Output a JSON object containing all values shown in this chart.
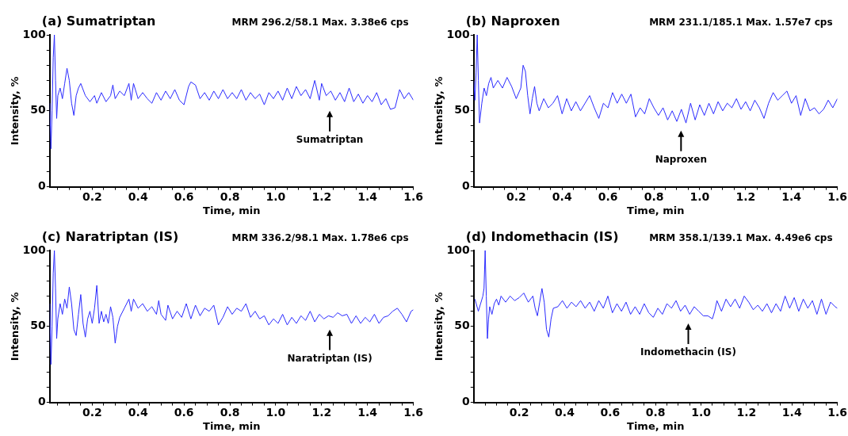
{
  "chart_data": [
    {
      "type": "line",
      "title": "(a) Sumatriptan",
      "subtitle": "MRM 296.2/58.1 Max. 3.38e6 cps",
      "xlabel": "Time, min",
      "ylabel": "Intensity, %",
      "xlim": [
        0.015,
        1.6
      ],
      "ylim": [
        0,
        100
      ],
      "xticks": [
        {
          "value": 0.05,
          "label": null
        },
        {
          "value": 0.1,
          "label": null
        },
        {
          "value": 0.15,
          "label": null
        },
        0.2,
        {
          "value": 0.25,
          "label": null
        },
        {
          "value": 0.3,
          "label": null
        },
        {
          "value": 0.35,
          "label": null
        },
        0.4,
        {
          "value": 0.45,
          "label": null
        },
        {
          "value": 0.5,
          "label": null
        },
        {
          "value": 0.55,
          "label": null
        },
        0.6,
        {
          "value": 0.65,
          "label": null
        },
        {
          "value": 0.7,
          "label": null
        },
        {
          "value": 0.75,
          "label": null
        },
        0.8,
        {
          "value": 0.85,
          "label": null
        },
        {
          "value": 0.9,
          "label": null
        },
        {
          "value": 0.95,
          "label": null
        },
        {
          "value": 1,
          "label": "1.0"
        },
        {
          "value": 1.05,
          "label": null
        },
        {
          "value": 1.1,
          "label": null
        },
        {
          "value": 1.15,
          "label": null
        },
        1.2,
        {
          "value": 1.25,
          "label": null
        },
        {
          "value": 1.3,
          "label": null
        },
        {
          "value": 1.35,
          "label": null
        },
        1.4,
        {
          "value": 1.45,
          "label": null
        },
        {
          "value": 1.5,
          "label": null
        },
        {
          "value": 1.55,
          "label": null
        },
        1.6
      ],
      "yticks": [
        0,
        {
          "value": 10,
          "label": null
        },
        {
          "value": 20,
          "label": null
        },
        {
          "value": 30,
          "label": null
        },
        {
          "value": 40,
          "label": null
        },
        50,
        {
          "value": 60,
          "label": null
        },
        {
          "value": 70,
          "label": null
        },
        {
          "value": 80,
          "label": null
        },
        {
          "value": 90,
          "label": null
        },
        100
      ],
      "annotations": [
        "Sumatriptan"
      ],
      "x": [
        0.015,
        0.02,
        0.025,
        0.03,
        0.035,
        0.04,
        0.045,
        0.05,
        0.06,
        0.07,
        0.08,
        0.09,
        0.1,
        0.11,
        0.12,
        0.13,
        0.14,
        0.15,
        0.17,
        0.19,
        0.21,
        0.22,
        0.24,
        0.26,
        0.28,
        0.29,
        0.3,
        0.32,
        0.34,
        0.36,
        0.37,
        0.38,
        0.4,
        0.42,
        0.44,
        0.46,
        0.48,
        0.5,
        0.52,
        0.54,
        0.56,
        0.58,
        0.6,
        0.62,
        0.63,
        0.65,
        0.67,
        0.69,
        0.71,
        0.73,
        0.75,
        0.77,
        0.79,
        0.81,
        0.83,
        0.85,
        0.87,
        0.89,
        0.91,
        0.93,
        0.95,
        0.97,
        0.99,
        1.01,
        1.03,
        1.05,
        1.07,
        1.09,
        1.11,
        1.13,
        1.15,
        1.17,
        1.19,
        1.2,
        1.22,
        1.24,
        1.26,
        1.28,
        1.3,
        1.32,
        1.34,
        1.36,
        1.38,
        1.4,
        1.42,
        1.44,
        1.46,
        1.48,
        1.5,
        1.52,
        1.54,
        1.56,
        1.58,
        1.6
      ],
      "series": [
        {
          "color": "#2a2aff",
          "values": [
            55,
            25,
            50,
            85,
            100,
            70,
            45,
            60,
            65,
            58,
            68,
            78,
            70,
            55,
            47,
            60,
            65,
            68,
            60,
            56,
            60,
            55,
            62,
            56,
            60,
            67,
            58,
            63,
            60,
            68,
            57,
            68,
            58,
            62,
            58,
            55,
            62,
            57,
            63,
            58,
            64,
            57,
            54,
            66,
            69,
            67,
            58,
            62,
            57,
            63,
            58,
            64,
            58,
            62,
            58,
            64,
            57,
            62,
            58,
            61,
            54,
            62,
            58,
            63,
            57,
            65,
            58,
            66,
            60,
            64,
            58,
            70,
            57,
            68,
            60,
            63,
            57,
            62,
            56,
            65,
            56,
            61,
            55,
            60,
            56,
            62,
            54,
            58,
            51,
            52,
            64,
            58,
            62,
            57
          ]
        }
      ]
    },
    {
      "type": "line",
      "title": "(b) Naproxen",
      "subtitle": "MRM 231.1/185.1 Max. 1.57e7 cps",
      "xlabel": "Time, min",
      "ylabel": "Intensity, %",
      "xlim": [
        0.015,
        1.6
      ],
      "ylim": [
        0,
        100
      ],
      "xticks": [
        {
          "value": 0.05,
          "label": null
        },
        {
          "value": 0.1,
          "label": null
        },
        {
          "value": 0.15,
          "label": null
        },
        0.2,
        {
          "value": 0.25,
          "label": null
        },
        {
          "value": 0.3,
          "label": null
        },
        {
          "value": 0.35,
          "label": null
        },
        0.4,
        {
          "value": 0.45,
          "label": null
        },
        {
          "value": 0.5,
          "label": null
        },
        {
          "value": 0.55,
          "label": null
        },
        0.6,
        {
          "value": 0.65,
          "label": null
        },
        {
          "value": 0.7,
          "label": null
        },
        {
          "value": 0.75,
          "label": null
        },
        0.8,
        {
          "value": 0.85,
          "label": null
        },
        {
          "value": 0.9,
          "label": null
        },
        {
          "value": 0.95,
          "label": null
        },
        {
          "value": 1,
          "label": "1.0"
        },
        {
          "value": 1.05,
          "label": null
        },
        {
          "value": 1.1,
          "label": null
        },
        {
          "value": 1.15,
          "label": null
        },
        1.2,
        {
          "value": 1.25,
          "label": null
        },
        {
          "value": 1.3,
          "label": null
        },
        {
          "value": 1.35,
          "label": null
        },
        1.4,
        {
          "value": 1.45,
          "label": null
        },
        {
          "value": 1.5,
          "label": null
        },
        {
          "value": 1.55,
          "label": null
        },
        1.6
      ],
      "yticks": [
        0,
        {
          "value": 10,
          "label": null
        },
        {
          "value": 20,
          "label": null
        },
        {
          "value": 30,
          "label": null
        },
        {
          "value": 40,
          "label": null
        },
        50,
        {
          "value": 60,
          "label": null
        },
        {
          "value": 70,
          "label": null
        },
        {
          "value": 80,
          "label": null
        },
        {
          "value": 90,
          "label": null
        },
        100
      ],
      "annotations": [
        "Naproxen"
      ],
      "x": [
        0.015,
        0.02,
        0.025,
        0.03,
        0.035,
        0.04,
        0.05,
        0.06,
        0.07,
        0.08,
        0.09,
        0.1,
        0.12,
        0.14,
        0.16,
        0.18,
        0.2,
        0.22,
        0.23,
        0.24,
        0.25,
        0.26,
        0.27,
        0.28,
        0.29,
        0.3,
        0.32,
        0.34,
        0.36,
        0.38,
        0.4,
        0.42,
        0.44,
        0.46,
        0.48,
        0.5,
        0.52,
        0.54,
        0.56,
        0.58,
        0.6,
        0.62,
        0.64,
        0.66,
        0.68,
        0.7,
        0.72,
        0.74,
        0.76,
        0.78,
        0.8,
        0.82,
        0.84,
        0.86,
        0.88,
        0.9,
        0.92,
        0.94,
        0.96,
        0.98,
        1,
        1.02,
        1.04,
        1.06,
        1.08,
        1.1,
        1.12,
        1.14,
        1.16,
        1.18,
        1.2,
        1.22,
        1.24,
        1.26,
        1.28,
        1.3,
        1.32,
        1.34,
        1.36,
        1.38,
        1.4,
        1.42,
        1.44,
        1.46,
        1.48,
        1.5,
        1.52,
        1.54,
        1.56,
        1.58,
        1.6
      ],
      "series": [
        {
          "color": "#2a2aff",
          "values": [
            70,
            57,
            75,
            100,
            70,
            42,
            55,
            65,
            60,
            68,
            72,
            65,
            70,
            65,
            72,
            66,
            58,
            65,
            80,
            76,
            60,
            48,
            58,
            66,
            55,
            50,
            58,
            52,
            55,
            60,
            48,
            58,
            50,
            56,
            50,
            55,
            60,
            52,
            45,
            55,
            52,
            62,
            55,
            61,
            55,
            61,
            46,
            52,
            48,
            58,
            52,
            47,
            52,
            44,
            50,
            43,
            51,
            42,
            55,
            44,
            54,
            47,
            55,
            48,
            56,
            50,
            55,
            52,
            58,
            51,
            56,
            50,
            57,
            52,
            45,
            55,
            62,
            57,
            60,
            63,
            55,
            60,
            47,
            58,
            50,
            52,
            48,
            51,
            57,
            52,
            58
          ]
        }
      ]
    },
    {
      "type": "line",
      "title": "(c) Naratriptan (IS)",
      "subtitle": "MRM 336.2/98.1 Max. 1.78e6 cps",
      "xlabel": "Time, min",
      "ylabel": "Intensity, %",
      "xlim": [
        0.015,
        1.6
      ],
      "ylim": [
        0,
        100
      ],
      "xticks": [
        {
          "value": 0.05,
          "label": null
        },
        {
          "value": 0.1,
          "label": null
        },
        {
          "value": 0.15,
          "label": null
        },
        0.2,
        {
          "value": 0.25,
          "label": null
        },
        {
          "value": 0.3,
          "label": null
        },
        {
          "value": 0.35,
          "label": null
        },
        0.4,
        {
          "value": 0.45,
          "label": null
        },
        {
          "value": 0.5,
          "label": null
        },
        {
          "value": 0.55,
          "label": null
        },
        0.6,
        {
          "value": 0.65,
          "label": null
        },
        {
          "value": 0.7,
          "label": null
        },
        {
          "value": 0.75,
          "label": null
        },
        0.8,
        {
          "value": 0.85,
          "label": null
        },
        {
          "value": 0.9,
          "label": null
        },
        {
          "value": 0.95,
          "label": null
        },
        {
          "value": 1,
          "label": "1.0"
        },
        {
          "value": 1.05,
          "label": null
        },
        {
          "value": 1.1,
          "label": null
        },
        {
          "value": 1.15,
          "label": null
        },
        1.2,
        {
          "value": 1.25,
          "label": null
        },
        {
          "value": 1.3,
          "label": null
        },
        {
          "value": 1.35,
          "label": null
        },
        1.4,
        {
          "value": 1.45,
          "label": null
        },
        {
          "value": 1.5,
          "label": null
        },
        {
          "value": 1.55,
          "label": null
        },
        1.6
      ],
      "yticks": [
        0,
        {
          "value": 10,
          "label": null
        },
        {
          "value": 20,
          "label": null
        },
        {
          "value": 30,
          "label": null
        },
        {
          "value": 40,
          "label": null
        },
        50,
        {
          "value": 60,
          "label": null
        },
        {
          "value": 70,
          "label": null
        },
        {
          "value": 80,
          "label": null
        },
        {
          "value": 90,
          "label": null
        },
        100
      ],
      "annotations": [
        "Naratriptan (IS)"
      ],
      "x": [
        0.015,
        0.02,
        0.025,
        0.03,
        0.035,
        0.04,
        0.045,
        0.05,
        0.06,
        0.07,
        0.08,
        0.09,
        0.1,
        0.11,
        0.12,
        0.13,
        0.14,
        0.15,
        0.16,
        0.17,
        0.18,
        0.19,
        0.2,
        0.21,
        0.22,
        0.23,
        0.24,
        0.25,
        0.26,
        0.27,
        0.28,
        0.29,
        0.3,
        0.31,
        0.32,
        0.34,
        0.36,
        0.37,
        0.38,
        0.4,
        0.42,
        0.44,
        0.46,
        0.48,
        0.49,
        0.5,
        0.52,
        0.53,
        0.55,
        0.57,
        0.59,
        0.61,
        0.63,
        0.65,
        0.67,
        0.69,
        0.71,
        0.73,
        0.75,
        0.77,
        0.79,
        0.81,
        0.83,
        0.85,
        0.87,
        0.89,
        0.91,
        0.93,
        0.95,
        0.97,
        0.99,
        1.01,
        1.03,
        1.05,
        1.07,
        1.09,
        1.11,
        1.13,
        1.15,
        1.17,
        1.19,
        1.21,
        1.23,
        1.25,
        1.27,
        1.29,
        1.31,
        1.33,
        1.35,
        1.37,
        1.39,
        1.41,
        1.43,
        1.45,
        1.47,
        1.49,
        1.51,
        1.53,
        1.55,
        1.57,
        1.59,
        1.6
      ],
      "series": [
        {
          "color": "#2a2aff",
          "values": [
            65,
            25,
            50,
            85,
            100,
            75,
            42,
            55,
            65,
            58,
            68,
            62,
            76,
            65,
            48,
            44,
            58,
            71,
            52,
            43,
            55,
            60,
            52,
            62,
            77,
            52,
            60,
            53,
            58,
            52,
            63,
            56,
            39,
            50,
            56,
            62,
            68,
            60,
            68,
            62,
            65,
            60,
            63,
            58,
            67,
            58,
            54,
            64,
            55,
            60,
            56,
            65,
            55,
            64,
            57,
            62,
            60,
            64,
            51,
            56,
            63,
            58,
            62,
            60,
            65,
            56,
            60,
            55,
            57,
            51,
            55,
            52,
            58,
            51,
            56,
            52,
            57,
            54,
            60,
            53,
            58,
            55,
            57,
            56,
            59,
            57,
            58,
            52,
            57,
            52,
            56,
            53,
            58,
            52,
            56,
            57,
            60,
            62,
            58,
            53,
            60,
            61
          ]
        }
      ]
    },
    {
      "type": "line",
      "title": "(d) Indomethacin (IS)",
      "subtitle": "MRM 358.1/139.1 Max. 4.49e6 cps",
      "xlabel": "Time, min",
      "ylabel": "Intensity, %",
      "xlim": [
        0,
        1.6
      ],
      "ylim": [
        0,
        100
      ],
      "xticks": [
        {
          "value": 0.05,
          "label": null
        },
        {
          "value": 0.1,
          "label": null
        },
        {
          "value": 0.15,
          "label": null
        },
        0.2,
        {
          "value": 0.25,
          "label": null
        },
        {
          "value": 0.3,
          "label": null
        },
        {
          "value": 0.35,
          "label": null
        },
        0.4,
        {
          "value": 0.45,
          "label": null
        },
        {
          "value": 0.5,
          "label": null
        },
        {
          "value": 0.55,
          "label": null
        },
        0.6,
        {
          "value": 0.65,
          "label": null
        },
        {
          "value": 0.7,
          "label": null
        },
        {
          "value": 0.75,
          "label": null
        },
        0.8,
        {
          "value": 0.85,
          "label": null
        },
        {
          "value": 0.9,
          "label": null
        },
        {
          "value": 0.95,
          "label": null
        },
        {
          "value": 1,
          "label": "1.0"
        },
        {
          "value": 1.05,
          "label": null
        },
        {
          "value": 1.1,
          "label": null
        },
        {
          "value": 1.15,
          "label": null
        },
        1.2,
        {
          "value": 1.25,
          "label": null
        },
        {
          "value": 1.3,
          "label": null
        },
        {
          "value": 1.35,
          "label": null
        },
        1.4,
        {
          "value": 1.45,
          "label": null
        },
        {
          "value": 1.5,
          "label": null
        },
        {
          "value": 1.55,
          "label": null
        },
        1.6
      ],
      "yticks": [
        0,
        {
          "value": 10,
          "label": null
        },
        {
          "value": 20,
          "label": null
        },
        {
          "value": 30,
          "label": null
        },
        {
          "value": 40,
          "label": null
        },
        50,
        {
          "value": 60,
          "label": null
        },
        {
          "value": 70,
          "label": null
        },
        {
          "value": 80,
          "label": null
        },
        {
          "value": 90,
          "label": null
        },
        100
      ],
      "annotations": [
        "Indomethacin (IS)"
      ],
      "x": [
        0.005,
        0.02,
        0.03,
        0.04,
        0.045,
        0.05,
        0.055,
        0.06,
        0.065,
        0.07,
        0.08,
        0.09,
        0.1,
        0.11,
        0.12,
        0.14,
        0.16,
        0.18,
        0.2,
        0.22,
        0.24,
        0.26,
        0.27,
        0.28,
        0.29,
        0.3,
        0.31,
        0.32,
        0.33,
        0.34,
        0.35,
        0.37,
        0.39,
        0.41,
        0.43,
        0.45,
        0.47,
        0.49,
        0.51,
        0.53,
        0.55,
        0.57,
        0.59,
        0.61,
        0.63,
        0.65,
        0.67,
        0.69,
        0.71,
        0.73,
        0.75,
        0.77,
        0.79,
        0.81,
        0.83,
        0.85,
        0.87,
        0.89,
        0.91,
        0.93,
        0.95,
        0.97,
        0.99,
        1.01,
        1.03,
        1.05,
        1.06,
        1.07,
        1.09,
        1.11,
        1.13,
        1.15,
        1.17,
        1.19,
        1.21,
        1.23,
        1.25,
        1.27,
        1.29,
        1.31,
        1.33,
        1.35,
        1.37,
        1.39,
        1.41,
        1.43,
        1.45,
        1.47,
        1.49,
        1.51,
        1.53,
        1.55,
        1.57,
        1.59,
        1.6
      ],
      "series": [
        {
          "color": "#2a2aff",
          "values": [
            68,
            60,
            65,
            70,
            75,
            100,
            70,
            42,
            55,
            63,
            58,
            65,
            68,
            64,
            70,
            66,
            70,
            67,
            69,
            72,
            66,
            70,
            62,
            57,
            66,
            75,
            66,
            48,
            43,
            55,
            62,
            63,
            67,
            62,
            66,
            63,
            67,
            62,
            66,
            60,
            67,
            62,
            70,
            59,
            65,
            60,
            66,
            58,
            63,
            58,
            65,
            59,
            56,
            62,
            58,
            65,
            62,
            67,
            60,
            64,
            58,
            63,
            60,
            57,
            57,
            55,
            60,
            67,
            60,
            68,
            63,
            68,
            62,
            70,
            66,
            61,
            64,
            60,
            65,
            59,
            65,
            60,
            70,
            62,
            69,
            60,
            68,
            62,
            67,
            58,
            68,
            58,
            66,
            63,
            62
          ]
        }
      ]
    }
  ]
}
